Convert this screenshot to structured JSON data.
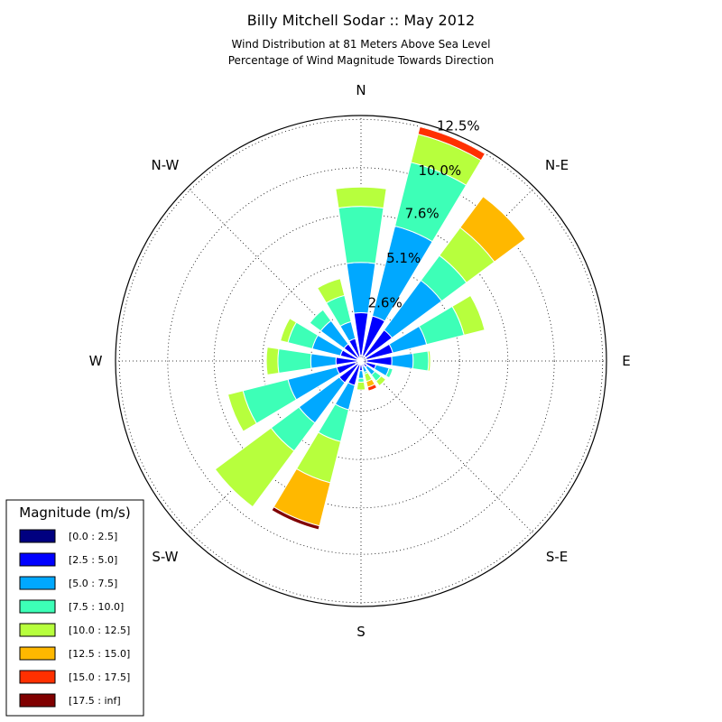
{
  "chart_data": {
    "type": "windrose",
    "title": "Billy Mitchell Sodar :: May 2012",
    "subtitle": [
      "Wind Distribution at 81 Meters Above Sea Level",
      "Percentage of Wind Magnitude Towards Direction"
    ],
    "directions": [
      "N",
      "N-E",
      "E",
      "S-E",
      "S",
      "S-W",
      "W",
      "N-W"
    ],
    "ring_values": [
      2.6,
      5.1,
      7.6,
      10.0,
      12.5
    ],
    "ring_labels": [
      "2.6%",
      "5.1%",
      "7.6%",
      "10.0%",
      "12.5%"
    ],
    "radial_max": 12.7,
    "sector_count": 16,
    "sector_start_deg": 0,
    "sector_step_deg": 22.5,
    "grid": true,
    "legend": {
      "title": "Magnitude (m/s)",
      "placement": "bottom-left",
      "entries": [
        {
          "label": "[0.0 : 2.5]",
          "color": "#000080"
        },
        {
          "label": "[2.5 : 5.0]",
          "color": "#0000ff"
        },
        {
          "label": "[5.0 : 7.5]",
          "color": "#00a8ff"
        },
        {
          "label": "[7.5 : 10.0]",
          "color": "#3dffb7"
        },
        {
          "label": "[10.0 : 12.5]",
          "color": "#b7ff3d"
        },
        {
          "label": "[12.5 : 15.0]",
          "color": "#ffb800"
        },
        {
          "label": "[15.0 : 17.5]",
          "color": "#ff3000"
        },
        {
          "label": "[17.5 : inf]",
          "color": "#800000"
        }
      ]
    },
    "series_cumulative": [
      [
        0.3,
        2.5,
        5.1,
        8.0,
        9.0,
        9.0,
        9.0,
        9.0
      ],
      [
        0.3,
        2.4,
        7.2,
        10.6,
        12.1,
        12.1,
        12.5,
        12.5
      ],
      [
        0.3,
        2.0,
        5.2,
        6.8,
        8.6,
        10.6,
        10.6,
        10.6
      ],
      [
        0.3,
        1.7,
        3.5,
        5.5,
        6.6,
        6.6,
        6.6,
        6.6
      ],
      [
        0.3,
        1.6,
        2.7,
        3.5,
        3.6,
        3.6,
        3.6,
        3.6
      ],
      [
        0.3,
        0.8,
        1.5,
        1.7,
        1.7,
        1.7,
        1.7,
        1.7
      ],
      [
        0.2,
        0.4,
        0.9,
        1.3,
        1.6,
        1.6,
        1.6,
        1.6
      ],
      [
        0.2,
        0.3,
        0.6,
        0.7,
        1.1,
        1.4,
        1.6,
        1.6
      ],
      [
        0.2,
        0.5,
        0.9,
        1.1,
        1.5,
        1.5,
        1.5,
        1.5
      ],
      [
        0.2,
        1.3,
        2.6,
        4.3,
        6.5,
        8.8,
        8.8,
        9.0
      ],
      [
        0.2,
        1.4,
        4.0,
        5.8,
        9.4,
        9.4,
        9.4,
        9.4
      ],
      [
        0.3,
        1.3,
        3.9,
        6.3,
        7.1,
        7.1,
        7.1,
        7.1
      ],
      [
        0.2,
        1.3,
        2.6,
        4.3,
        4.9,
        4.9,
        4.9,
        4.9
      ],
      [
        0.2,
        1.1,
        2.6,
        3.9,
        4.3,
        4.3,
        4.3,
        4.3
      ],
      [
        0.2,
        1.1,
        2.6,
        3.3,
        3.3,
        3.3,
        3.3,
        3.3
      ],
      [
        0.2,
        1.2,
        2.1,
        3.5,
        4.4,
        4.4,
        4.4,
        4.4
      ]
    ]
  }
}
